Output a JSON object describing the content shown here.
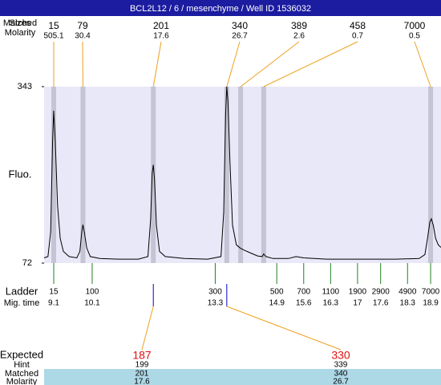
{
  "chart_data": {
    "type": "line",
    "title": "BCL2L12 / 6 / mesenchyme / Well ID 1536032",
    "y_label": "Fluo.",
    "ylim": [
      72,
      343
    ],
    "yticks": [
      72,
      343
    ],
    "xlim": [
      8.85,
      19.17
    ],
    "color": "#000000",
    "plot_background": "#e8e8f8",
    "band_color": "#c4c4d4",
    "x": [
      8.85,
      8.95,
      9.02,
      9.07,
      9.1,
      9.14,
      9.2,
      9.27,
      9.35,
      9.5,
      9.7,
      9.78,
      9.83,
      9.86,
      9.9,
      9.96,
      10.05,
      10.3,
      10.8,
      11.3,
      11.55,
      11.62,
      11.66,
      11.69,
      11.72,
      11.77,
      11.85,
      12.0,
      12.5,
      13.1,
      13.45,
      13.52,
      13.57,
      13.6,
      13.63,
      13.68,
      13.75,
      13.85,
      13.95,
      14.05,
      14.2,
      14.4,
      14.52,
      14.56,
      14.62,
      14.8,
      15.2,
      15.4,
      15.6,
      16.2,
      17.0,
      18.0,
      18.6,
      18.75,
      18.82,
      18.88,
      18.92,
      18.97,
      19.03,
      19.1,
      19.17
    ],
    "values": [
      80,
      82,
      120,
      260,
      306,
      260,
      160,
      110,
      90,
      82,
      80,
      90,
      120,
      131,
      118,
      95,
      82,
      79,
      78,
      78,
      82,
      140,
      210,
      223,
      200,
      130,
      90,
      82,
      79,
      78,
      82,
      150,
      300,
      343,
      320,
      230,
      130,
      100,
      95,
      92,
      88,
      83,
      82,
      86,
      82,
      79,
      79,
      82,
      80,
      78,
      78,
      78,
      79,
      85,
      110,
      135,
      140,
      130,
      110,
      100,
      96
    ],
    "peaks": {
      "size_label": "Sizes",
      "matched_label": "Matched",
      "molarity_label": "Molarity",
      "sizes": [
        15,
        79,
        201,
        340,
        389,
        458,
        7000
      ],
      "molarity": [
        505.1,
        30.4,
        17.6,
        26.7,
        2.6,
        0.7,
        0.5
      ],
      "times": [
        9.1,
        9.86,
        11.69,
        13.6,
        13.96,
        14.56,
        18.9
      ]
    },
    "ladder": {
      "label": "Ladder",
      "time_label": "Mig. time",
      "sizes": [
        15,
        100,
        300,
        500,
        700,
        1100,
        1900,
        2900,
        4900,
        7000
      ],
      "times": [
        9.1,
        10.1,
        13.3,
        14.9,
        15.6,
        16.3,
        17,
        17.6,
        18.3,
        18.9
      ]
    },
    "expected": {
      "expected_label": "Expected",
      "hint_label": "Hint",
      "matched_label": "Matched",
      "molarity_label": "Molarity",
      "expected": [
        187,
        330
      ],
      "hint": [
        199,
        339
      ],
      "matched": [
        201,
        340
      ],
      "molarity": [
        17.6,
        26.7
      ],
      "times": [
        11.69,
        13.6
      ]
    }
  }
}
